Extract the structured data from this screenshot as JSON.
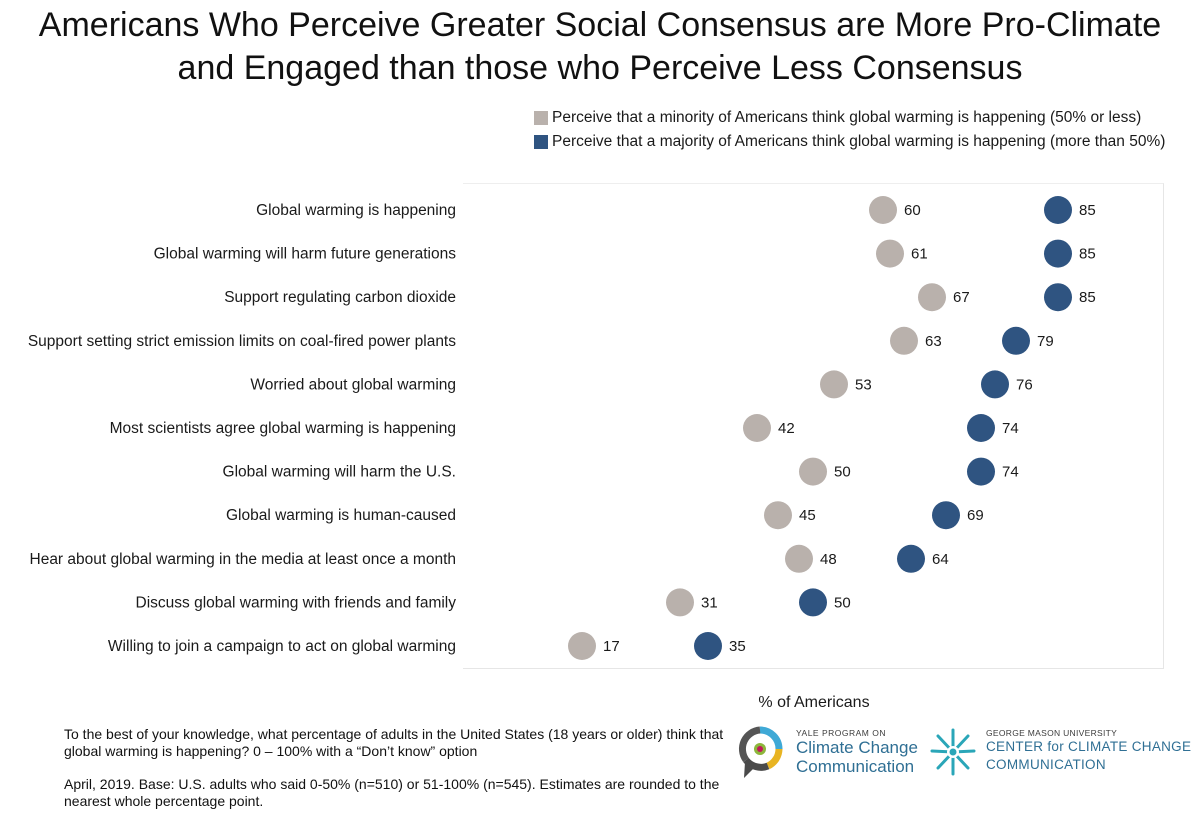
{
  "title_lines": [
    "Americans Who Perceive Greater Social Consensus are More Pro-Climate",
    "and Engaged than those who Perceive Less Consensus"
  ],
  "colors": {
    "minority": "#b9b1ac",
    "majority": "#2f5481"
  },
  "chart_data": {
    "type": "scatter",
    "categories": [
      "Global warming is happening",
      "Global warming will harm future generations",
      "Support regulating carbon dioxide",
      "Support setting strict emission limits on coal-fired power plants",
      "Worried about global warming",
      "Most scientists agree global warming is happening",
      "Global warming will harm the U.S.",
      "Global warming is human-caused",
      "Hear about global warming in the media at least once a month",
      "Discuss global warming with friends and family",
      "Willing to join a campaign to act on global warming"
    ],
    "series": [
      {
        "name": "Perceive that a minority of Americans think global warming is happening (50% or less)",
        "values": [
          60,
          61,
          67,
          63,
          53,
          42,
          50,
          45,
          48,
          31,
          17
        ]
      },
      {
        "name": "Perceive that a majority of Americans think global warming is happening (more than 50%)",
        "values": [
          85,
          85,
          85,
          79,
          76,
          74,
          74,
          69,
          64,
          50,
          35
        ]
      }
    ],
    "xlabel": "% of Americans",
    "xlim": [
      0,
      100
    ],
    "grid": false,
    "legend_position": "top-right"
  },
  "footnotes": [
    "To the best of your knowledge, what percentage of adults in the United States (18 years or older) think that global warming is happening? 0 – 100% with a “Don’t know” option",
    "April, 2019. Base: U.S. adults who said 0-50% (n=510) or 51-100% (n=545). Estimates are rounded to the nearest whole percentage point."
  ],
  "logos": {
    "yale": {
      "small": "YALE PROGRAM ON",
      "line1": "Climate Change",
      "line2": "Communication"
    },
    "gmu": {
      "small": "GEORGE MASON UNIVERSITY",
      "line1": "CENTER for CLIMATE CHANGE",
      "line2": "COMMUNICATION"
    }
  }
}
